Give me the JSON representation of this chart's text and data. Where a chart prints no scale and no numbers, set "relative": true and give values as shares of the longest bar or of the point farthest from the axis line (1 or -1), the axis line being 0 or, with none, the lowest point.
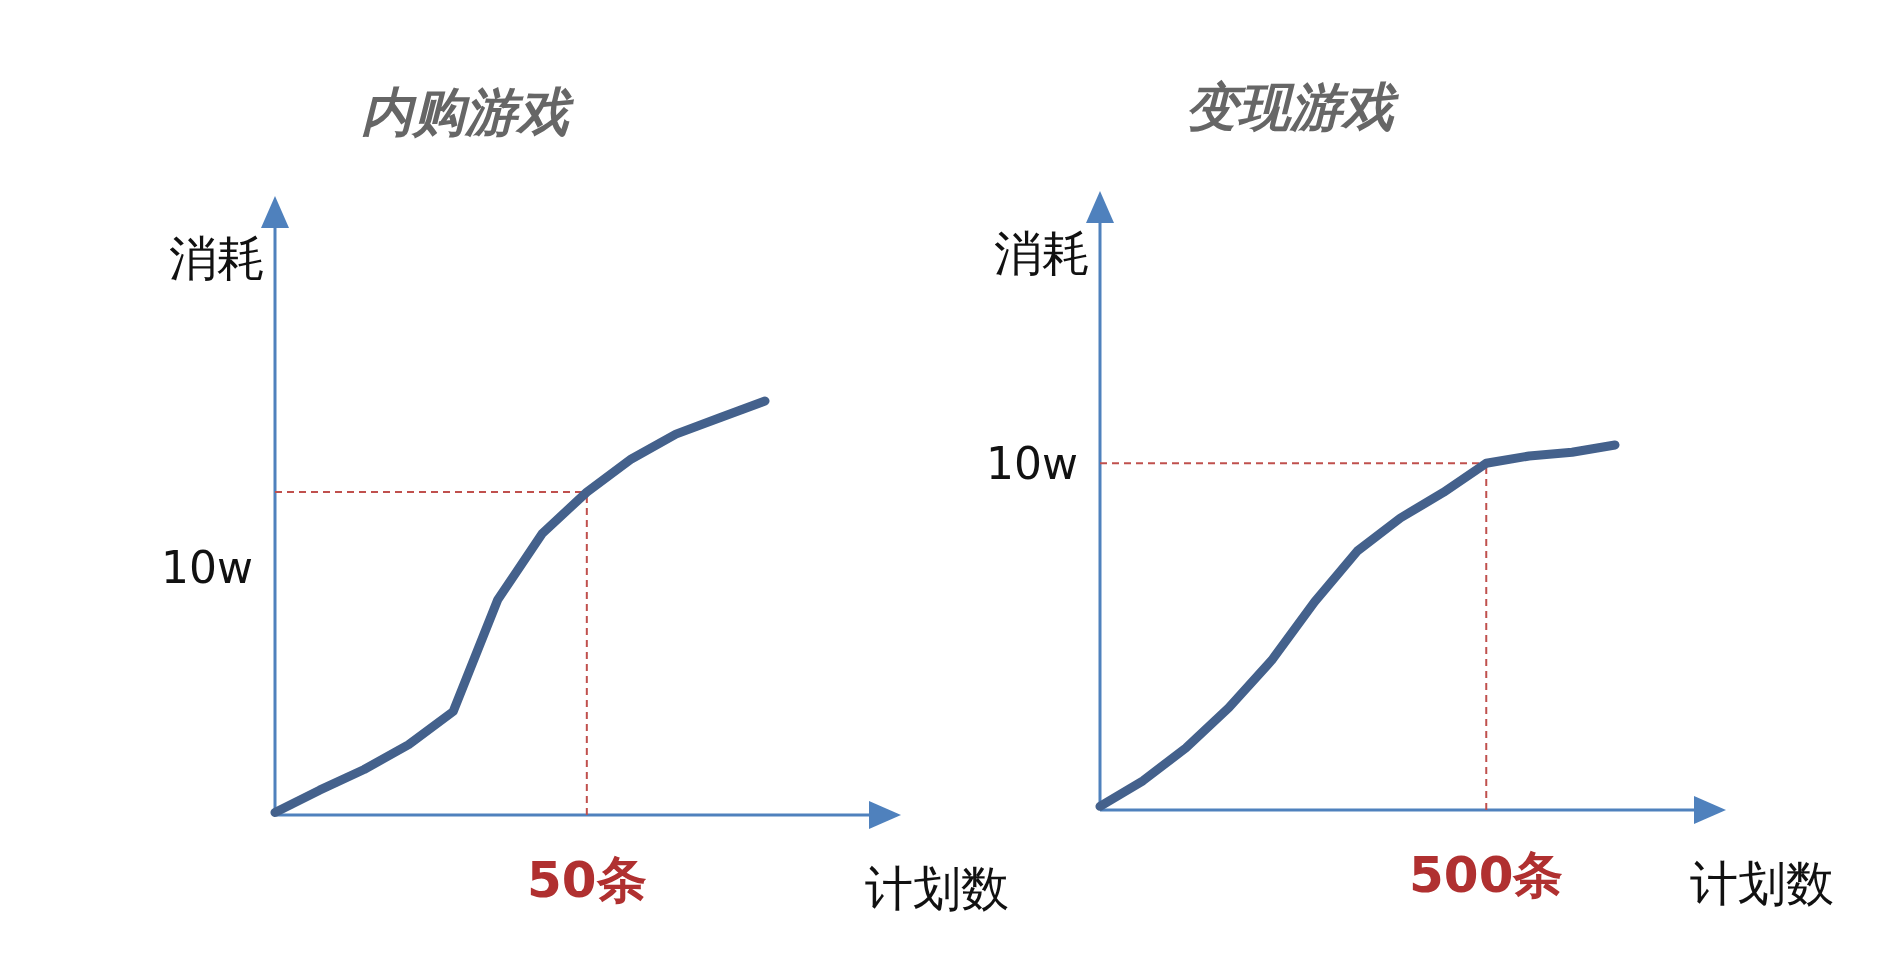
{
  "chart_data": [
    {
      "type": "line",
      "title": "内购游戏",
      "xlabel": "计划数",
      "ylabel": "消耗",
      "relative": true,
      "categories": [
        null,
        null,
        null,
        null,
        null,
        null,
        null,
        null,
        null,
        null,
        null,
        null
      ],
      "values": [
        0.006,
        0.06,
        0.11,
        0.17,
        0.25,
        0.52,
        0.68,
        0.78,
        0.86,
        0.92,
        0.96,
        1
      ],
      "color": "#44618c",
      "ref_lines": [
        {
          "axis": "y",
          "value": 0.78,
          "color": "#c0504d",
          "line_style": "dashed"
        }
      ],
      "annotations": [
        "10w",
        "50条"
      ]
    },
    {
      "type": "line",
      "title": "变现游戏",
      "xlabel": "计划数",
      "ylabel": "消耗",
      "relative": true,
      "categories": [
        null,
        null,
        null,
        null,
        null,
        null,
        null,
        null,
        null,
        null,
        null,
        null,
        null
      ],
      "values": [
        0.01,
        0.08,
        0.17,
        0.28,
        0.41,
        0.57,
        0.71,
        0.8,
        0.87,
        0.95,
        0.97,
        0.98,
        1
      ],
      "color": "#44618c",
      "ref_lines": [
        {
          "axis": "y",
          "value": 0.95,
          "color": "#c0504d",
          "line_style": "dashed"
        }
      ],
      "annotations": [
        "10w",
        "500条"
      ]
    }
  ]
}
